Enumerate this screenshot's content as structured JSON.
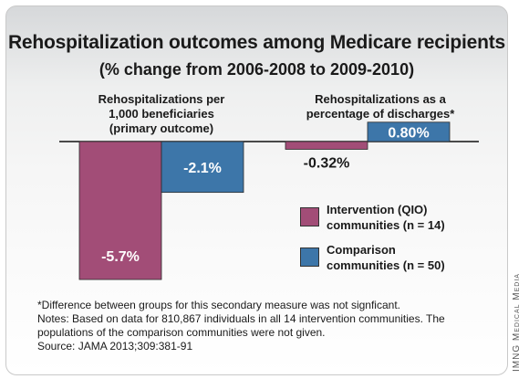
{
  "chart_data": {
    "type": "bar",
    "title": "Rehospitalization outcomes among Medicare recipients",
    "subtitle": "(% change from 2006-2008 to 2009-2010)",
    "groups": [
      "Rehospitalizations per\n1,000 beneficiaries\n(primary outcome)",
      "Rehospitalizations as a\npercentage of discharges*"
    ],
    "series": [
      {
        "name": "Intervention (QIO)\ncommunities (n = 14)",
        "color": "#a24d77",
        "values": [
          -5.7,
          -0.32
        ],
        "labels": [
          "-5.7%",
          "-0.32%"
        ]
      },
      {
        "name": "Comparison\ncommunities (n = 50)",
        "color": "#3d76a9",
        "values": [
          -2.1,
          0.8
        ],
        "labels": [
          "-2.1%",
          "0.80%"
        ]
      }
    ],
    "notes": [
      "*Difference between groups for this secondary measure was not signficant.",
      "Notes: Based on data for 810,867 individuals in all 14 intervention communities. The\npopulations of the comparison communities were not given.",
      "Source: JAMA 2013;309:381-91"
    ],
    "credit": "IMNG Medical Media"
  }
}
